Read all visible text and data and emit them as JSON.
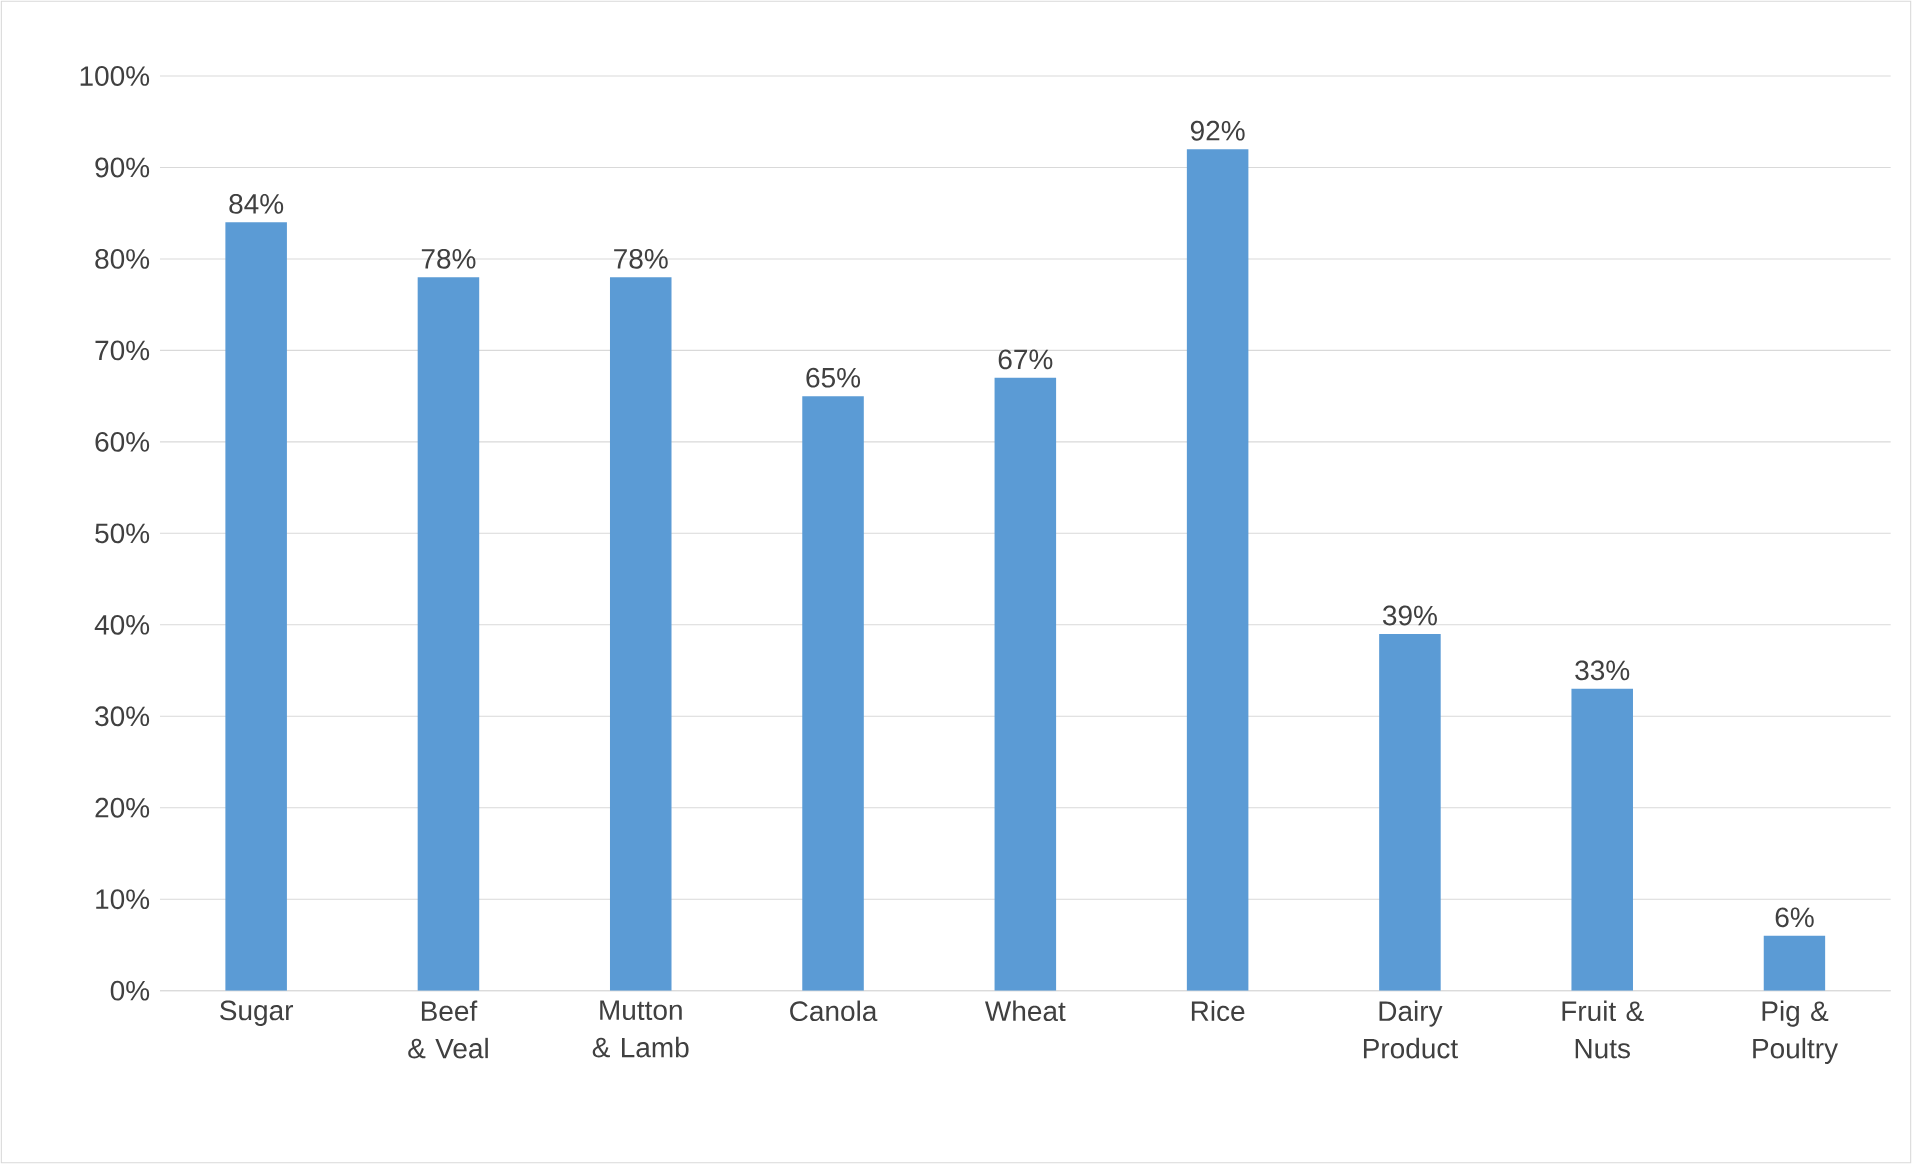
{
  "chart_data": {
    "type": "bar",
    "categories": [
      "Sugar",
      "Beef & Veal",
      "Mutton & Lamb",
      "Canola",
      "Wheat",
      "Rice",
      "Dairy Product",
      "Fruit & Nuts",
      "Pig & Poultry"
    ],
    "values": [
      84,
      78,
      78,
      65,
      67,
      92,
      39,
      33,
      6
    ],
    "value_labels": [
      "84%",
      "78%",
      "78%",
      "65%",
      "67%",
      "92%",
      "39%",
      "33%",
      "6%"
    ],
    "color": "#5b9bd5",
    "ylim": [
      0,
      100
    ],
    "yticks": [
      {
        "value": 0,
        "label": "0%"
      },
      {
        "value": 10,
        "label": "10%"
      },
      {
        "value": 20,
        "label": "20%"
      },
      {
        "value": 30,
        "label": "30%"
      },
      {
        "value": 40,
        "label": "40%"
      },
      {
        "value": 50,
        "label": "50%"
      },
      {
        "value": 60,
        "label": "60%"
      },
      {
        "value": 70,
        "label": "70%"
      },
      {
        "value": 80,
        "label": "80%"
      },
      {
        "value": 90,
        "label": "90%"
      },
      {
        "value": 100,
        "label": "100%"
      }
    ],
    "grid": "y"
  }
}
